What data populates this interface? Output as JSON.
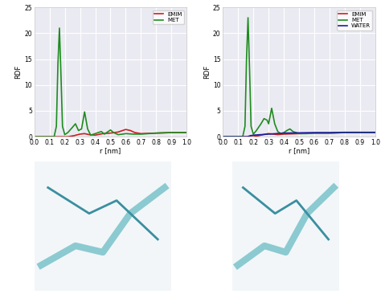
{
  "chart_data": [
    {
      "type": "line",
      "xlabel": "r [nm]",
      "ylabel": "RDF",
      "xlim": [
        0.0,
        1.0
      ],
      "ylim": [
        0,
        25
      ],
      "xticks": [
        0.0,
        0.1,
        0.2,
        0.3,
        0.4,
        0.5,
        0.6,
        0.7,
        0.8,
        0.9,
        1.0
      ],
      "yticks": [
        0,
        5,
        10,
        15,
        20,
        25
      ],
      "grid": true,
      "legend": "upper right",
      "series": [
        {
          "name": "EMIM",
          "color": "#c8201e",
          "x": [
            0.0,
            0.22,
            0.26,
            0.3,
            0.33,
            0.36,
            0.4,
            0.45,
            0.5,
            0.55,
            0.6,
            0.63,
            0.66,
            0.7,
            0.8,
            0.9,
            1.0
          ],
          "values": [
            0,
            0,
            0.2,
            0.5,
            0.6,
            0.4,
            0.3,
            0.6,
            0.7,
            0.9,
            1.4,
            1.2,
            0.8,
            0.6,
            0.7,
            0.8,
            0.8
          ]
        },
        {
          "name": "MET",
          "color": "#1e8c1e",
          "x": [
            0.0,
            0.13,
            0.145,
            0.155,
            0.165,
            0.175,
            0.185,
            0.2,
            0.22,
            0.25,
            0.27,
            0.29,
            0.31,
            0.33,
            0.35,
            0.37,
            0.4,
            0.42,
            0.44,
            0.46,
            0.48,
            0.5,
            0.52,
            0.55,
            0.58,
            0.6,
            0.65,
            0.7,
            0.75,
            0.8,
            0.9,
            1.0
          ],
          "values": [
            0,
            0,
            2,
            14,
            21,
            12,
            2,
            0.4,
            0.8,
            1.8,
            2.5,
            1.2,
            1.5,
            4.8,
            1.5,
            0.3,
            0.6,
            0.8,
            1.0,
            0.5,
            0.9,
            1.3,
            0.8,
            0.4,
            0.5,
            0.6,
            0.5,
            0.5,
            0.6,
            0.7,
            0.8,
            0.8
          ]
        }
      ]
    },
    {
      "type": "line",
      "xlabel": "r [nm]",
      "ylabel": "RDF",
      "xlim": [
        0.0,
        1.0
      ],
      "ylim": [
        0,
        25
      ],
      "xticks": [
        0.0,
        0.1,
        0.2,
        0.3,
        0.4,
        0.5,
        0.6,
        0.7,
        0.8,
        0.9,
        1.0
      ],
      "yticks": [
        0,
        5,
        10,
        15,
        20,
        25
      ],
      "grid": true,
      "legend": "upper right",
      "series": [
        {
          "name": "EMIM",
          "color": "#c8201e",
          "x": [
            0.0,
            0.2,
            0.25,
            0.28,
            0.3,
            0.33,
            0.36,
            0.4,
            0.5,
            0.6,
            0.7,
            0.8,
            0.9,
            1.0
          ],
          "values": [
            0,
            0,
            0.3,
            0.5,
            0.6,
            0.5,
            0.4,
            0.5,
            0.6,
            0.7,
            0.7,
            0.8,
            0.8,
            0.8
          ]
        },
        {
          "name": "MET",
          "color": "#1e8c1e",
          "x": [
            0.0,
            0.13,
            0.145,
            0.155,
            0.165,
            0.175,
            0.185,
            0.2,
            0.22,
            0.25,
            0.27,
            0.29,
            0.3,
            0.32,
            0.34,
            0.36,
            0.38,
            0.4,
            0.42,
            0.44,
            0.46,
            0.5,
            0.55,
            0.6,
            0.7,
            0.8,
            0.9,
            1.0
          ],
          "values": [
            0,
            0,
            2,
            15,
            23,
            13,
            2,
            0.5,
            1.2,
            2.5,
            3.5,
            3.2,
            2.5,
            5.5,
            2.5,
            1.0,
            0.6,
            0.8,
            1.2,
            1.5,
            1.0,
            0.6,
            0.6,
            0.7,
            0.7,
            0.8,
            0.8,
            0.8
          ]
        },
        {
          "name": "WATER",
          "color": "#1e1e9a",
          "x": [
            0.0,
            0.16,
            0.18,
            0.2,
            0.25,
            0.3,
            0.35,
            0.4,
            0.5,
            0.6,
            0.7,
            0.8,
            0.9,
            1.0
          ],
          "values": [
            0,
            0,
            0.2,
            0.3,
            0.4,
            0.5,
            0.6,
            0.7,
            0.75,
            0.8,
            0.8,
            0.85,
            0.85,
            0.85
          ]
        }
      ]
    }
  ]
}
